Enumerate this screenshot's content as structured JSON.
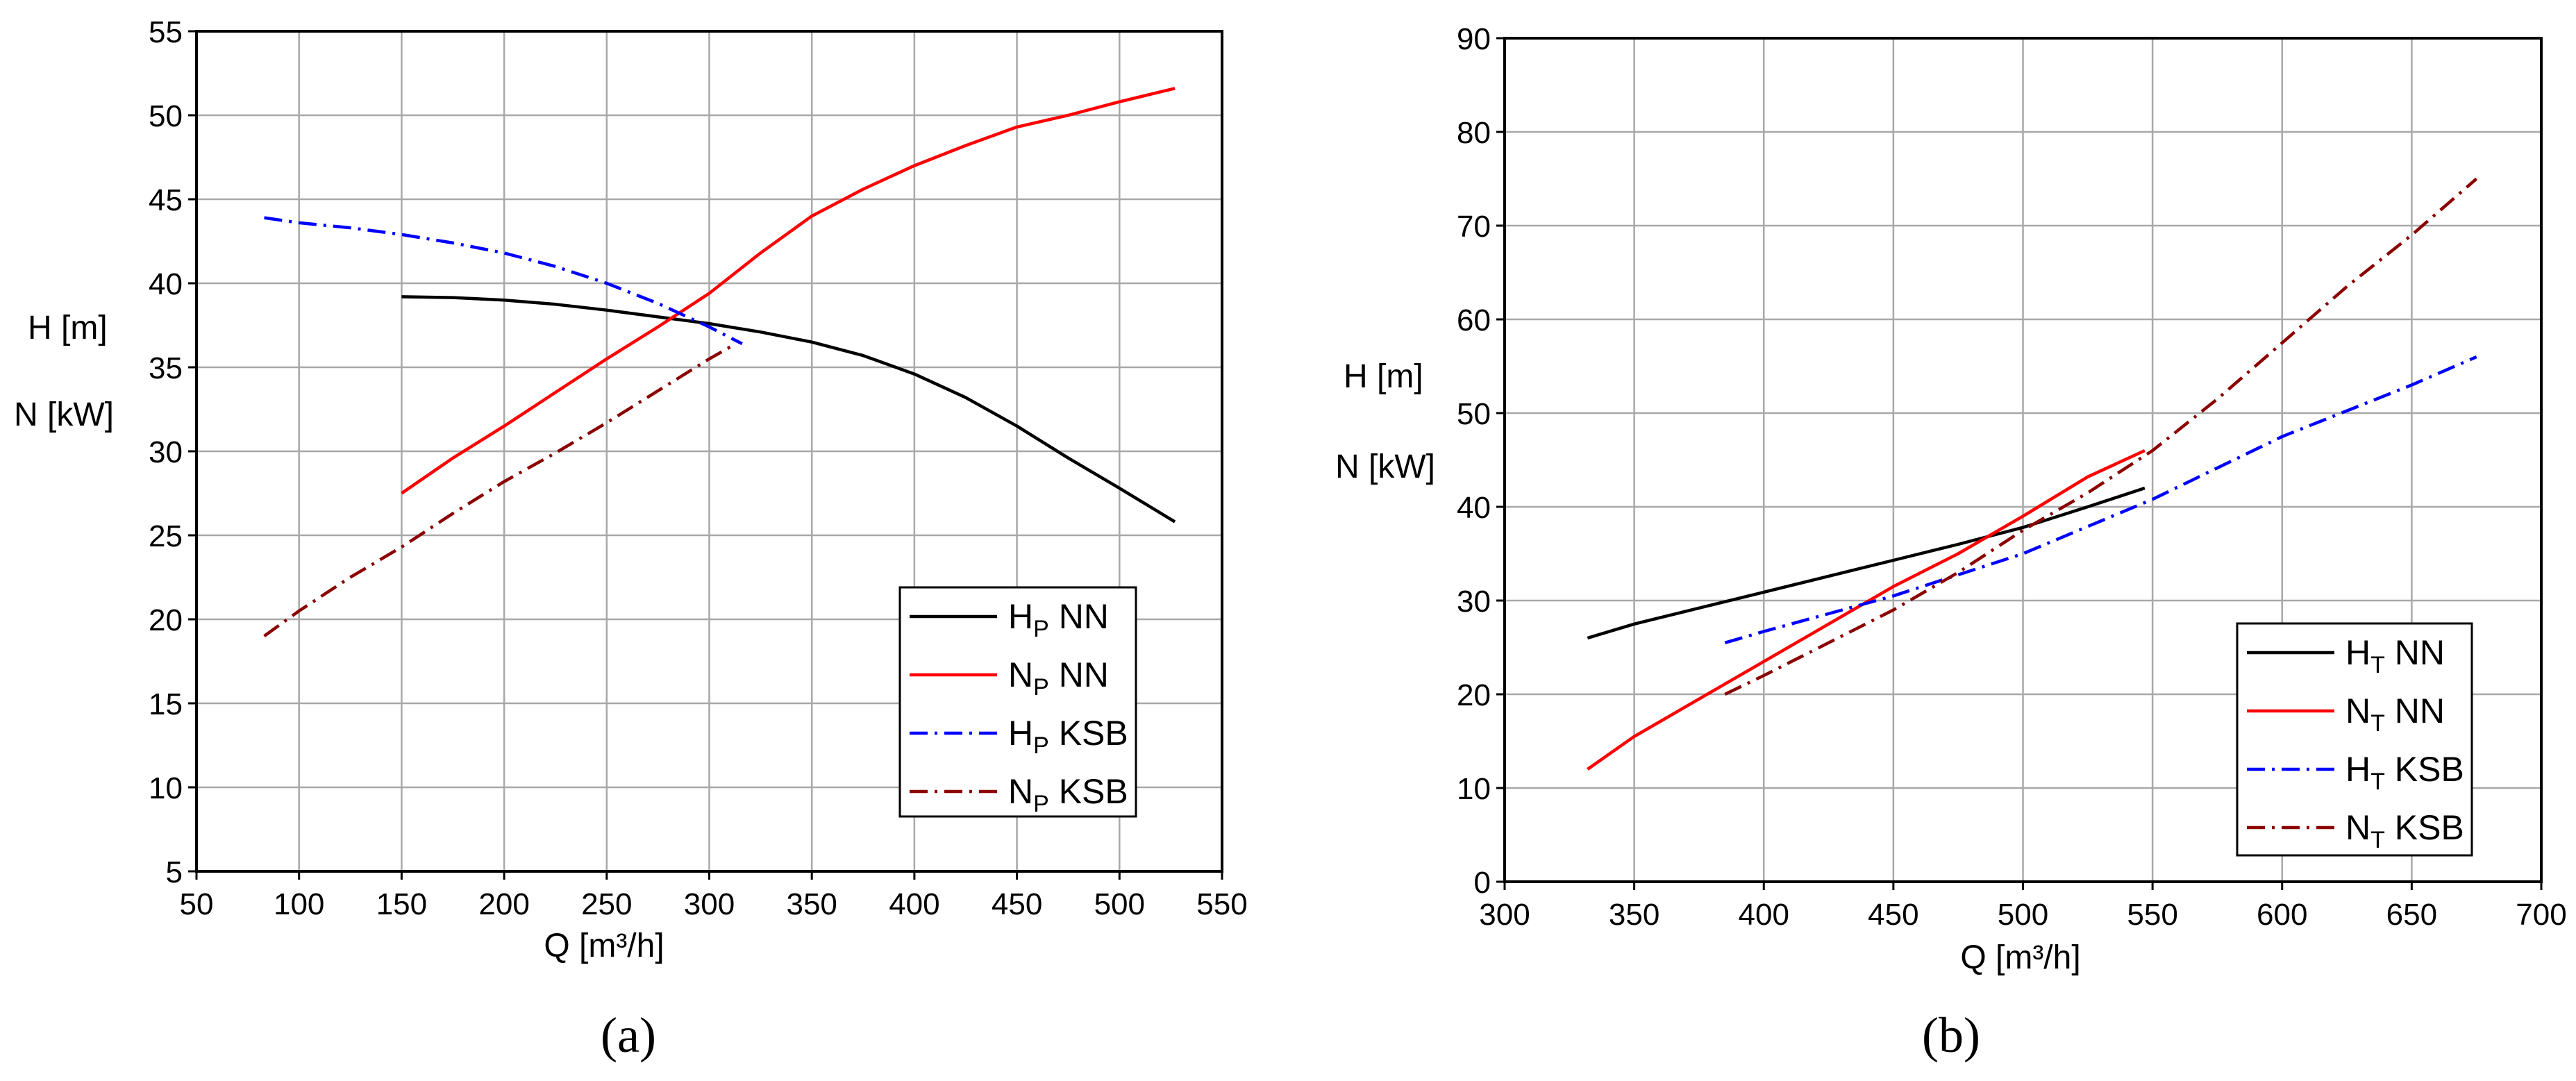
{
  "chart_data": [
    {
      "id": "a",
      "type": "line",
      "caption": "(a)",
      "xlabel": "Q [m³/h]",
      "ylabels": [
        "H [m]",
        "N [kW]"
      ],
      "xlim": [
        50,
        550
      ],
      "ylim": [
        5,
        55
      ],
      "xticks": [
        50,
        100,
        150,
        200,
        250,
        300,
        350,
        400,
        450,
        500,
        550
      ],
      "yticks": [
        5,
        10,
        15,
        20,
        25,
        30,
        35,
        40,
        45,
        50,
        55
      ],
      "grid": true,
      "legend_position": "bottom-right",
      "series": [
        {
          "name": "H_P NN",
          "base": "H",
          "sub": "P",
          "suffix": " NN",
          "color": "#000000",
          "style": "solid",
          "x": [
            150,
            175,
            200,
            225,
            250,
            275,
            300,
            325,
            350,
            375,
            400,
            425,
            450,
            475,
            500,
            527
          ],
          "y": [
            39.2,
            39.15,
            39.0,
            38.75,
            38.4,
            38.0,
            37.6,
            37.1,
            36.5,
            35.7,
            34.6,
            33.2,
            31.5,
            29.6,
            27.8,
            25.8
          ]
        },
        {
          "name": "N_P NN",
          "base": "N",
          "sub": "P",
          "suffix": " NN",
          "color": "#ff0000",
          "style": "solid",
          "x": [
            150,
            175,
            200,
            225,
            250,
            275,
            300,
            325,
            350,
            375,
            400,
            425,
            450,
            475,
            500,
            527
          ],
          "y": [
            27.5,
            29.6,
            31.5,
            33.5,
            35.5,
            37.4,
            39.4,
            41.8,
            44.0,
            45.6,
            47.0,
            48.2,
            49.3,
            50.0,
            50.8,
            51.6
          ]
        },
        {
          "name": "H_P KSB",
          "base": "H",
          "sub": "P",
          "suffix": " KSB",
          "color": "#0000ff",
          "style": "dashdot",
          "x": [
            83,
            100,
            125,
            150,
            175,
            200,
            225,
            250,
            275,
            300,
            316
          ],
          "y": [
            43.9,
            43.6,
            43.3,
            42.9,
            42.4,
            41.8,
            41.0,
            40.0,
            38.8,
            37.4,
            36.4
          ]
        },
        {
          "name": "N_P KSB",
          "base": "N",
          "sub": "P",
          "suffix": " KSB",
          "color": "#8b0000",
          "style": "dashdot",
          "x": [
            83,
            100,
            125,
            150,
            175,
            200,
            225,
            250,
            275,
            300,
            313
          ],
          "y": [
            19.0,
            20.5,
            22.5,
            24.3,
            26.3,
            28.2,
            29.9,
            31.7,
            33.6,
            35.5,
            36.4
          ]
        }
      ]
    },
    {
      "id": "b",
      "type": "line",
      "caption": "(b)",
      "xlabel": "Q [m³/h]",
      "ylabels": [
        "H [m]",
        "N [kW]"
      ],
      "xlim": [
        300,
        700
      ],
      "ylim": [
        0,
        90
      ],
      "xticks": [
        300,
        350,
        400,
        450,
        500,
        550,
        600,
        650,
        700
      ],
      "yticks": [
        0,
        10,
        20,
        30,
        40,
        50,
        60,
        70,
        80,
        90
      ],
      "grid": true,
      "legend_position": "bottom-right",
      "series": [
        {
          "name": "H_T NN",
          "base": "H",
          "sub": "T",
          "suffix": " NN",
          "color": "#000000",
          "style": "solid",
          "x": [
            332,
            350,
            375,
            400,
            425,
            450,
            475,
            500,
            525,
            547
          ],
          "y": [
            26.0,
            27.5,
            29.2,
            30.9,
            32.6,
            34.3,
            36.0,
            37.8,
            40.0,
            42.0
          ]
        },
        {
          "name": "N_T NN",
          "base": "N",
          "sub": "T",
          "suffix": " NN",
          "color": "#ff0000",
          "style": "solid",
          "x": [
            332,
            350,
            375,
            400,
            425,
            450,
            475,
            500,
            525,
            547
          ],
          "y": [
            12.0,
            15.5,
            19.5,
            23.5,
            27.5,
            31.5,
            35.0,
            39.0,
            43.2,
            46.0
          ]
        },
        {
          "name": "H_T KSB",
          "base": "H",
          "sub": "T",
          "suffix": " KSB",
          "color": "#0000ff",
          "style": "dashdot",
          "x": [
            385,
            400,
            450,
            500,
            550,
            600,
            650,
            675
          ],
          "y": [
            25.5,
            26.7,
            30.5,
            35.0,
            40.8,
            47.5,
            53.0,
            56.0
          ]
        },
        {
          "name": "N_T KSB",
          "base": "N",
          "sub": "T",
          "suffix": " KSB",
          "color": "#8b0000",
          "style": "dashdot",
          "x": [
            385,
            400,
            425,
            450,
            475,
            500,
            525,
            550,
            575,
            600,
            625,
            650,
            675
          ],
          "y": [
            20.0,
            22.0,
            25.5,
            29.0,
            33.0,
            37.5,
            41.5,
            46.0,
            51.5,
            57.5,
            63.5,
            69.0,
            75.0
          ]
        }
      ]
    }
  ]
}
